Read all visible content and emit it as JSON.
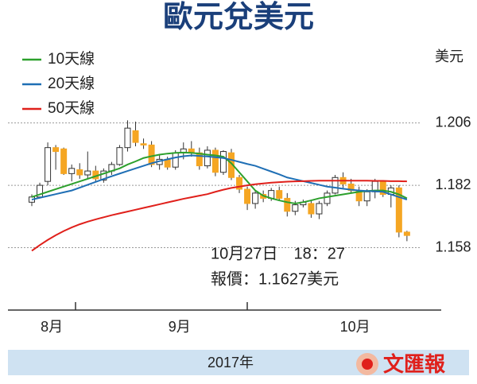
{
  "chart_data": {
    "type": "candlestick",
    "title": "歐元兌美元",
    "y_axis_label": "美元",
    "x_axis_label": "2017年",
    "source": "文匯報",
    "annotations": [
      "10月27日　18：27",
      "報價：1.1627美元"
    ],
    "categories": [
      null,
      null,
      "8月",
      null,
      null,
      null,
      null,
      null,
      null,
      null,
      null,
      null,
      null,
      null,
      null,
      null,
      null,
      null,
      "9月",
      null,
      null,
      null,
      null,
      null,
      null,
      null,
      null,
      null,
      null,
      null,
      null,
      null,
      null,
      null,
      null,
      null,
      null,
      null,
      null,
      null,
      "10月",
      null,
      null,
      null,
      null,
      null,
      null,
      null
    ],
    "open": [
      1.1755,
      1.1775,
      1.1835,
      1.1965,
      1.196,
      1.1865,
      1.188,
      1.186,
      1.1875,
      1.184,
      1.1875,
      1.19,
      1.1965,
      1.203,
      1.198,
      1.1975,
      1.19,
      1.192,
      1.189,
      1.1945,
      1.196,
      1.1945,
      1.1895,
      1.1955,
      1.187,
      1.1945,
      1.185,
      1.1805,
      1.175,
      1.1785,
      1.177,
      1.18,
      1.177,
      1.172,
      1.1745,
      1.175,
      1.171,
      1.175,
      1.179,
      1.185,
      1.1825,
      1.18,
      1.176,
      1.1795,
      1.1835,
      1.1785,
      1.181,
      1.164
    ],
    "high": [
      1.1785,
      1.183,
      1.1985,
      1.1975,
      1.1965,
      1.19,
      1.1905,
      1.195,
      1.1895,
      1.1885,
      1.191,
      1.1975,
      1.207,
      1.2065,
      1.2,
      1.199,
      1.1935,
      1.193,
      1.1955,
      1.1985,
      1.199,
      1.1965,
      1.197,
      1.1965,
      1.1955,
      1.196,
      1.186,
      1.1815,
      1.18,
      1.18,
      1.181,
      1.1815,
      1.179,
      1.176,
      1.1765,
      1.1765,
      1.176,
      1.18,
      1.186,
      1.187,
      1.1845,
      1.1815,
      1.1805,
      1.1845,
      1.184,
      1.182,
      1.182,
      1.1645
    ],
    "low": [
      1.174,
      1.177,
      1.182,
      1.188,
      1.186,
      1.1835,
      1.1845,
      1.1845,
      1.1835,
      1.183,
      1.186,
      1.1895,
      1.195,
      1.197,
      1.196,
      1.189,
      1.188,
      1.188,
      1.188,
      1.192,
      1.193,
      1.188,
      1.1885,
      1.1855,
      1.186,
      1.184,
      1.179,
      1.1725,
      1.173,
      1.1755,
      1.176,
      1.176,
      1.17,
      1.1705,
      1.1735,
      1.1695,
      1.169,
      1.174,
      1.1785,
      1.181,
      1.179,
      1.174,
      1.174,
      1.177,
      1.1775,
      1.1735,
      1.162,
      1.1605
    ],
    "close": [
      1.1775,
      1.182,
      1.1965,
      1.195,
      1.1865,
      1.1885,
      1.186,
      1.1875,
      1.1845,
      1.1875,
      1.19,
      1.1965,
      1.204,
      1.1985,
      1.1975,
      1.19,
      1.192,
      1.189,
      1.1945,
      1.196,
      1.1945,
      1.1895,
      1.1955,
      1.187,
      1.195,
      1.185,
      1.1805,
      1.175,
      1.179,
      1.177,
      1.18,
      1.177,
      1.172,
      1.1745,
      1.1755,
      1.171,
      1.175,
      1.179,
      1.185,
      1.1825,
      1.18,
      1.176,
      1.1795,
      1.1835,
      1.1785,
      1.181,
      1.164,
      1.1627
    ],
    "up_color": "#ffffff",
    "down_color": "#f5a623",
    "series": [
      {
        "name": "10天線",
        "color": "#2ca02c",
        "values": [
          1.1775,
          1.1785,
          1.1795,
          1.1805,
          1.1815,
          1.1825,
          1.1835,
          1.1845,
          1.1855,
          1.1865,
          1.1875,
          1.1885,
          1.19,
          1.1912,
          1.1925,
          1.1932,
          1.1938,
          1.1942,
          1.1945,
          1.1946,
          1.1945,
          1.1942,
          1.1938,
          1.1935,
          1.193,
          1.1905,
          1.187,
          1.1835,
          1.18,
          1.178,
          1.177,
          1.1762,
          1.1755,
          1.175,
          1.1755,
          1.1762,
          1.177,
          1.1775,
          1.178,
          1.1785,
          1.179,
          1.1795,
          1.1798,
          1.18,
          1.18,
          1.1795,
          1.1785,
          1.177
        ]
      },
      {
        "name": "20天線",
        "color": "#1f6fb5",
        "values": [
          1.1765,
          1.1772,
          1.1779,
          1.1786,
          1.1793,
          1.18,
          1.1811,
          1.1822,
          1.1833,
          1.1844,
          1.1855,
          1.1865,
          1.1875,
          1.1885,
          1.1895,
          1.1905,
          1.1913,
          1.192,
          1.1927,
          1.1932,
          1.1935,
          1.1933,
          1.1931,
          1.1928,
          1.1925,
          1.1918,
          1.191,
          1.1902,
          1.1895,
          1.1884,
          1.1873,
          1.1862,
          1.185,
          1.1843,
          1.1836,
          1.1829,
          1.1822,
          1.1815,
          1.1811,
          1.1807,
          1.1803,
          1.18,
          1.1798,
          1.1797,
          1.1795,
          1.1785,
          1.1775,
          1.1765
        ]
      },
      {
        "name": "50天線",
        "color": "#e0201b",
        "values": [
          1.1568,
          1.159,
          1.161,
          1.1628,
          1.1644,
          1.1658,
          1.167,
          1.168,
          1.1689,
          1.1697,
          1.1705,
          1.1712,
          1.1719,
          1.1726,
          1.1733,
          1.174,
          1.1747,
          1.1754,
          1.1761,
          1.1768,
          1.1774,
          1.178,
          1.1786,
          1.1795,
          1.1803,
          1.181,
          1.1815,
          1.182,
          1.1824,
          1.1827,
          1.183,
          1.1832,
          1.1834,
          1.1835,
          1.1836,
          1.1837,
          1.1838,
          1.1838,
          1.1838,
          1.1838,
          1.1838,
          1.1838,
          1.1838,
          1.1837,
          1.1837,
          1.1836,
          1.1836,
          1.1835
        ]
      }
    ],
    "ylim": [
      1.134,
      1.238
    ],
    "yticks": [
      1.206,
      1.182,
      1.158
    ],
    "grid": true
  }
}
